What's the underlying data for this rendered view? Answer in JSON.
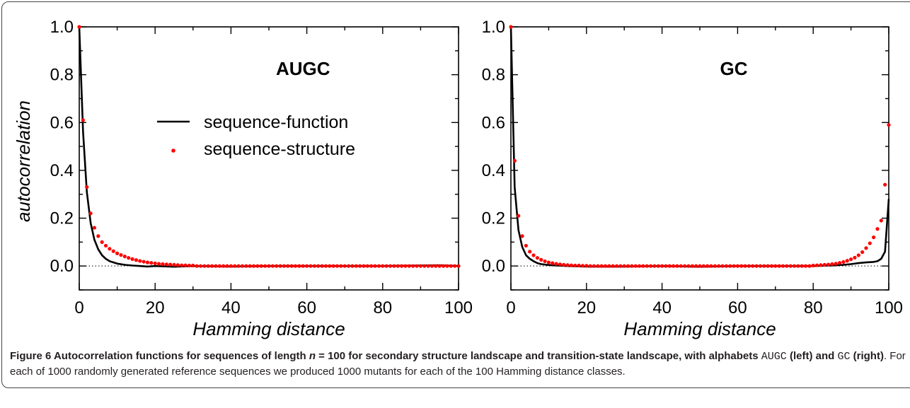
{
  "chart_data": [
    {
      "type": "scatter",
      "title": "AUGC",
      "xlabel": "Hamming distance",
      "ylabel": "autocorrelation",
      "xlim": [
        0,
        100
      ],
      "ylim": [
        -0.1,
        1.0
      ],
      "xticks": [
        "0",
        "20",
        "40",
        "60",
        "80",
        "100"
      ],
      "yticks": [
        "0.0",
        "0.2",
        "0.4",
        "0.6",
        "0.8",
        "1.0"
      ],
      "legend": {
        "position": "center",
        "entries": [
          "sequence-function",
          "sequence-structure"
        ]
      },
      "series": [
        {
          "name": "sequence-function",
          "kind": "line",
          "color": "#000000",
          "x": [
            0,
            1,
            2,
            3,
            4,
            5,
            6,
            7,
            8,
            10,
            12,
            14,
            16,
            18,
            20,
            25,
            30,
            40,
            50,
            60,
            70,
            80,
            90,
            95,
            100
          ],
          "y": [
            1.0,
            0.56,
            0.31,
            0.18,
            0.11,
            0.07,
            0.045,
            0.03,
            0.02,
            0.01,
            0.005,
            0.002,
            0.0,
            -0.002,
            0.0,
            -0.003,
            0.0,
            -0.002,
            0.0,
            0.0,
            0.0,
            0.0,
            0.002,
            0.003,
            0.0
          ]
        },
        {
          "name": "sequence-structure",
          "kind": "points",
          "color": "#ff0000",
          "x": [
            0,
            1,
            2,
            3,
            4,
            5,
            6,
            7,
            8,
            9,
            10,
            11,
            12,
            13,
            14,
            15,
            16,
            17,
            18,
            19,
            20,
            21,
            22,
            23,
            24,
            25,
            26,
            27,
            28,
            29,
            30
          ],
          "y": [
            1.0,
            0.61,
            0.33,
            0.22,
            0.16,
            0.125,
            0.1,
            0.085,
            0.072,
            0.062,
            0.053,
            0.046,
            0.04,
            0.034,
            0.029,
            0.025,
            0.021,
            0.018,
            0.015,
            0.013,
            0.011,
            0.009,
            0.008,
            0.007,
            0.006,
            0.005,
            0.004,
            0.003,
            0.003,
            0.002,
            0.002
          ],
          "tail_value": 0.0
        }
      ]
    },
    {
      "type": "scatter",
      "title": "GC",
      "xlabel": "Hamming distance",
      "ylabel": "",
      "xlim": [
        0,
        100
      ],
      "ylim": [
        -0.1,
        1.0
      ],
      "xticks": [
        "0",
        "20",
        "40",
        "60",
        "80",
        "100"
      ],
      "yticks": [
        "0.0",
        "0.2",
        "0.4",
        "0.6",
        "0.8",
        "1.0"
      ],
      "series": [
        {
          "name": "sequence-function",
          "kind": "line",
          "color": "#000000",
          "x": [
            0,
            1,
            2,
            3,
            4,
            5,
            6,
            7,
            8,
            10,
            12,
            15,
            20,
            30,
            40,
            50,
            60,
            70,
            80,
            85,
            88,
            90,
            92,
            94,
            96,
            97,
            98,
            99,
            100
          ],
          "y": [
            1.0,
            0.33,
            0.15,
            0.08,
            0.045,
            0.03,
            0.02,
            0.012,
            0.008,
            0.004,
            0.002,
            0.0,
            -0.002,
            -0.002,
            0.0,
            -0.003,
            0.0,
            0.0,
            0.0,
            0.002,
            0.005,
            0.008,
            0.012,
            0.015,
            0.017,
            0.02,
            0.03,
            0.06,
            0.28
          ]
        },
        {
          "name": "sequence-structure",
          "kind": "points",
          "color": "#ff0000",
          "x": [
            0,
            1,
            2,
            3,
            4,
            5,
            6,
            7,
            8,
            9,
            10,
            11,
            12,
            13,
            14,
            15,
            16,
            17,
            18,
            19,
            20,
            80,
            81,
            82,
            83,
            84,
            85,
            86,
            87,
            88,
            89,
            90,
            91,
            92,
            93,
            94,
            95,
            96,
            97,
            98,
            99,
            100
          ],
          "y": [
            1.0,
            0.44,
            0.21,
            0.125,
            0.085,
            0.06,
            0.045,
            0.034,
            0.026,
            0.02,
            0.015,
            0.012,
            0.009,
            0.007,
            0.005,
            0.004,
            0.003,
            0.002,
            0.002,
            0.001,
            0.001,
            0.002,
            0.003,
            0.004,
            0.005,
            0.006,
            0.008,
            0.01,
            0.013,
            0.017,
            0.022,
            0.028,
            0.035,
            0.045,
            0.058,
            0.075,
            0.095,
            0.12,
            0.155,
            0.19,
            0.34,
            0.59
          ],
          "tail_value": 0.0
        }
      ]
    }
  ],
  "caption": {
    "lead": "Figure 6 Autocorrelation functions for sequences of length ",
    "n_symbol": "n",
    "lead_rest": " = 100 for secondary structure landscape and transition-state landscape, with alphabets ",
    "alpha1": "AUGC",
    "left_word": " (left) and ",
    "alpha2": "GC",
    "right_word": " (right)",
    "body": ". For each of 1000 randomly generated reference sequences we produced 1000 mutants for each of the 100 Hamming distance classes."
  }
}
